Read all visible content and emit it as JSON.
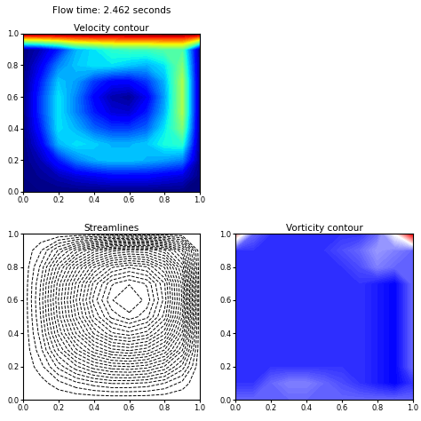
{
  "header": "Flow time: 2.462 seconds",
  "chart_data": [
    {
      "type": "contour",
      "title": "Velocity contour",
      "color": "jet",
      "x": [
        0.0,
        0.1,
        0.2,
        0.3,
        0.4,
        0.5,
        0.6,
        0.7,
        0.8,
        0.9,
        1.0
      ],
      "y": [
        0.0,
        0.1,
        0.2,
        0.3,
        0.4,
        0.5,
        0.6,
        0.7,
        0.8,
        0.9,
        1.0
      ],
      "range": [
        0,
        1
      ],
      "cells": [
        [
          0,
          0,
          0,
          0,
          0,
          0,
          0,
          0,
          0,
          0,
          0
        ],
        [
          0,
          0.02,
          0.05,
          0.08,
          0.1,
          0.12,
          0.12,
          0.12,
          0.1,
          0.08,
          0
        ],
        [
          0,
          0.05,
          0.15,
          0.25,
          0.3,
          0.32,
          0.32,
          0.3,
          0.28,
          0.25,
          0
        ],
        [
          0,
          0.1,
          0.3,
          0.35,
          0.33,
          0.3,
          0.3,
          0.32,
          0.38,
          0.4,
          0
        ],
        [
          0,
          0.15,
          0.35,
          0.3,
          0.22,
          0.18,
          0.18,
          0.22,
          0.35,
          0.5,
          0
        ],
        [
          0,
          0.18,
          0.35,
          0.25,
          0.15,
          0.08,
          0.07,
          0.15,
          0.3,
          0.55,
          0
        ],
        [
          0,
          0.18,
          0.35,
          0.25,
          0.12,
          0.04,
          0.02,
          0.1,
          0.28,
          0.55,
          0
        ],
        [
          0,
          0.15,
          0.32,
          0.28,
          0.18,
          0.12,
          0.12,
          0.18,
          0.3,
          0.55,
          0
        ],
        [
          0,
          0.1,
          0.25,
          0.32,
          0.35,
          0.35,
          0.32,
          0.3,
          0.35,
          0.5,
          0
        ],
        [
          0,
          0.05,
          0.15,
          0.3,
          0.35,
          0.4,
          0.42,
          0.42,
          0.45,
          0.45,
          0
        ],
        [
          1,
          1,
          1,
          1,
          1,
          1,
          1,
          1,
          1,
          1,
          1
        ]
      ],
      "xlim": [
        0,
        1
      ],
      "ylim": [
        0,
        1
      ],
      "xticks": [
        {
          "value": 0,
          "label": "0.0"
        },
        {
          "value": 0.2,
          "label": "0.2"
        },
        {
          "value": 0.4,
          "label": "0.4"
        },
        {
          "value": 0.6,
          "label": "0.6"
        },
        {
          "value": 0.8,
          "label": "0.8"
        },
        {
          "value": 1,
          "label": "1.0"
        }
      ],
      "yticks": [
        {
          "value": 0,
          "label": "0.0"
        },
        {
          "value": 0.2,
          "label": "0.2"
        },
        {
          "value": 0.4,
          "label": "0.4"
        },
        {
          "value": 0.6,
          "label": "0.6"
        },
        {
          "value": 0.8,
          "label": "0.8"
        },
        {
          "value": 1,
          "label": "1.0"
        }
      ]
    },
    {
      "type": "streamlines",
      "title": "Streamlines",
      "color": "black",
      "x": [
        0.0,
        0.1,
        0.2,
        0.3,
        0.4,
        0.5,
        0.6,
        0.7,
        0.8,
        0.9,
        1.0
      ],
      "y": [
        0.0,
        0.1,
        0.2,
        0.3,
        0.4,
        0.5,
        0.6,
        0.7,
        0.8,
        0.9,
        1.0
      ],
      "cells": [
        [
          0,
          0,
          0,
          0,
          0,
          0,
          0,
          0,
          0,
          0,
          0
        ],
        [
          0,
          -0.002,
          -0.006,
          -0.01,
          -0.013,
          -0.015,
          -0.015,
          -0.014,
          -0.011,
          -0.006,
          0
        ],
        [
          0,
          -0.006,
          -0.016,
          -0.025,
          -0.032,
          -0.036,
          -0.037,
          -0.035,
          -0.029,
          -0.017,
          0
        ],
        [
          0,
          -0.01,
          -0.026,
          -0.04,
          -0.051,
          -0.058,
          -0.06,
          -0.057,
          -0.048,
          -0.03,
          0
        ],
        [
          0,
          -0.013,
          -0.034,
          -0.052,
          -0.067,
          -0.077,
          -0.08,
          -0.076,
          -0.064,
          -0.04,
          0
        ],
        [
          0,
          -0.015,
          -0.039,
          -0.06,
          -0.078,
          -0.09,
          -0.095,
          -0.09,
          -0.076,
          -0.048,
          0
        ],
        [
          0,
          -0.016,
          -0.041,
          -0.063,
          -0.083,
          -0.096,
          -0.1,
          -0.095,
          -0.08,
          -0.051,
          0
        ],
        [
          0,
          -0.015,
          -0.039,
          -0.06,
          -0.079,
          -0.092,
          -0.096,
          -0.092,
          -0.078,
          -0.05,
          0
        ],
        [
          0,
          -0.012,
          -0.032,
          -0.05,
          -0.066,
          -0.077,
          -0.081,
          -0.078,
          -0.066,
          -0.043,
          0
        ],
        [
          0,
          -0.007,
          -0.019,
          -0.031,
          -0.042,
          -0.05,
          -0.053,
          -0.052,
          -0.045,
          -0.03,
          0
        ],
        [
          0,
          0,
          0,
          0,
          0,
          0,
          0,
          0,
          0,
          0,
          0
        ]
      ],
      "xlim": [
        0,
        1
      ],
      "ylim": [
        0,
        1
      ],
      "xticks": [
        {
          "value": 0,
          "label": "0.0"
        },
        {
          "value": 0.2,
          "label": "0.2"
        },
        {
          "value": 0.4,
          "label": "0.4"
        },
        {
          "value": 0.6,
          "label": "0.6"
        },
        {
          "value": 0.8,
          "label": "0.8"
        },
        {
          "value": 1,
          "label": "1.0"
        }
      ],
      "yticks": [
        {
          "value": 0,
          "label": "0.0"
        },
        {
          "value": 0.2,
          "label": "0.2"
        },
        {
          "value": 0.4,
          "label": "0.4"
        },
        {
          "value": 0.6,
          "label": "0.6"
        },
        {
          "value": 0.8,
          "label": "0.8"
        },
        {
          "value": 1,
          "label": "1.0"
        }
      ]
    },
    {
      "type": "contour",
      "title": "Vorticity contour",
      "color": "bwr",
      "x": [
        0.0,
        0.1,
        0.2,
        0.3,
        0.4,
        0.5,
        0.6,
        0.7,
        0.8,
        0.9,
        1.0
      ],
      "y": [
        0.0,
        0.1,
        0.2,
        0.3,
        0.4,
        0.5,
        0.6,
        0.7,
        0.8,
        0.9,
        1.0
      ],
      "range": [
        -5,
        5
      ],
      "cells": [
        [
          -3,
          -3,
          -3,
          -3,
          -3,
          -3,
          -3,
          -3,
          -3,
          -3,
          -3
        ],
        [
          -4,
          -4,
          -3,
          -2.5,
          -2.5,
          -3,
          -3.5,
          -4,
          -4.5,
          -5,
          -4
        ],
        [
          -4,
          -4,
          -4,
          -4,
          -4,
          -4,
          -4,
          -4,
          -4.5,
          -5,
          -3
        ],
        [
          -4,
          -4,
          -4,
          -4,
          -4,
          -4,
          -4,
          -4,
          -4.5,
          -5,
          -3
        ],
        [
          -4,
          -4,
          -4,
          -4,
          -4,
          -4,
          -4,
          -4,
          -4.5,
          -5,
          -3
        ],
        [
          -4,
          -4,
          -4,
          -4,
          -4,
          -4,
          -4,
          -4,
          -4.5,
          -5,
          -3
        ],
        [
          -4,
          -4,
          -4,
          -4,
          -4,
          -4,
          -4,
          -4,
          -4.5,
          -5,
          -3
        ],
        [
          -4,
          -4,
          -4,
          -4,
          -4,
          -4,
          -4,
          -4,
          -4.5,
          -5,
          -3
        ],
        [
          -4,
          -4,
          -4,
          -4,
          -4,
          -4,
          -4,
          -3.5,
          -2.5,
          -3,
          -3
        ],
        [
          -4,
          -4,
          -4,
          -4,
          -4,
          -4,
          -3.5,
          -3,
          -2,
          -2.5,
          -3
        ],
        [
          2,
          -3,
          -4,
          -4,
          -4,
          -4,
          -4,
          -4,
          -3,
          0,
          5
        ]
      ],
      "xlim": [
        0,
        1
      ],
      "ylim": [
        0,
        1
      ],
      "xticks": [
        {
          "value": 0,
          "label": "0.0"
        },
        {
          "value": 0.2,
          "label": "0.2"
        },
        {
          "value": 0.4,
          "label": "0.4"
        },
        {
          "value": 0.6,
          "label": "0.6"
        },
        {
          "value": 0.8,
          "label": "0.8"
        },
        {
          "value": 1,
          "label": "1.0"
        }
      ],
      "yticks": [
        {
          "value": 0,
          "label": "0.0"
        },
        {
          "value": 0.2,
          "label": "0.2"
        },
        {
          "value": 0.4,
          "label": "0.4"
        },
        {
          "value": 0.6,
          "label": "0.6"
        },
        {
          "value": 0.8,
          "label": "0.8"
        },
        {
          "value": 1,
          "label": "1.0"
        }
      ]
    }
  ]
}
